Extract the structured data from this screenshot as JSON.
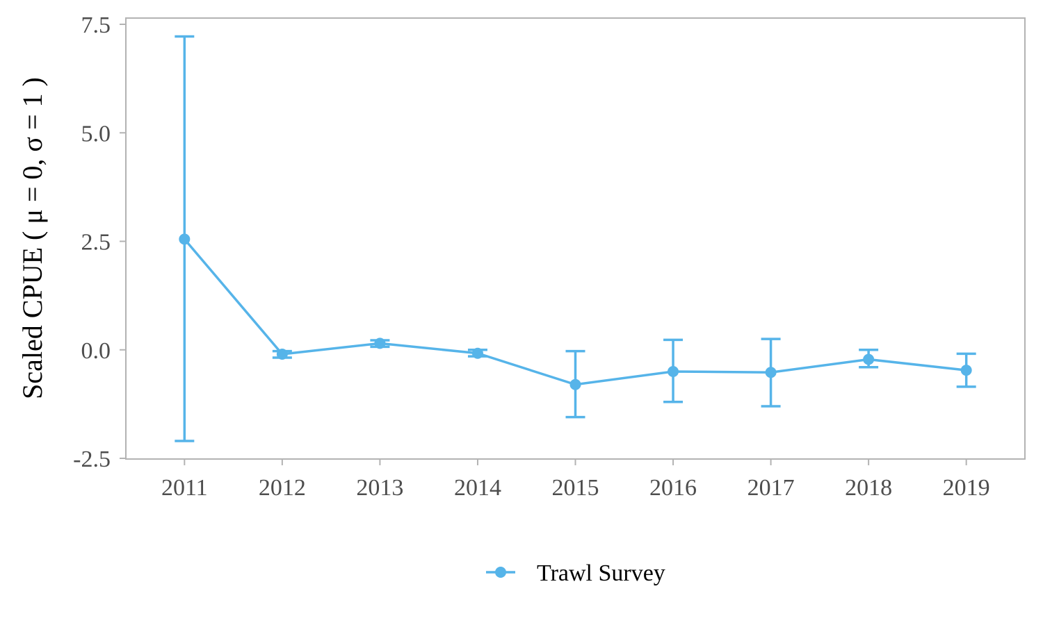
{
  "chart_data": {
    "type": "line",
    "title": "",
    "xlabel": "",
    "ylabel": "Scaled CPUE ( μ = 0, σ = 1 )",
    "x": [
      "2011",
      "2012",
      "2013",
      "2014",
      "2015",
      "2016",
      "2017",
      "2018",
      "2019"
    ],
    "xlim": [
      2010.4,
      2019.6
    ],
    "ylim": [
      -2.5,
      7.5
    ],
    "yticks": [
      -2.5,
      0.0,
      2.5,
      5.0,
      7.5
    ],
    "ytick_labels": [
      "-2.5",
      "0.0",
      "2.5",
      "5.0",
      "7.5"
    ],
    "grid": false,
    "legend_position": "bottom",
    "series": [
      {
        "name": "Trawl Survey",
        "color": "#56B4E9",
        "values": [
          2.55,
          -0.1,
          0.15,
          -0.08,
          -0.8,
          -0.5,
          -0.52,
          -0.22,
          -0.47
        ],
        "lower": [
          -2.1,
          -0.18,
          0.07,
          -0.15,
          -1.55,
          -1.2,
          -1.3,
          -0.4,
          -0.85
        ],
        "upper": [
          7.22,
          -0.03,
          0.22,
          0.0,
          -0.03,
          0.23,
          0.25,
          0.0,
          -0.09
        ]
      }
    ]
  }
}
